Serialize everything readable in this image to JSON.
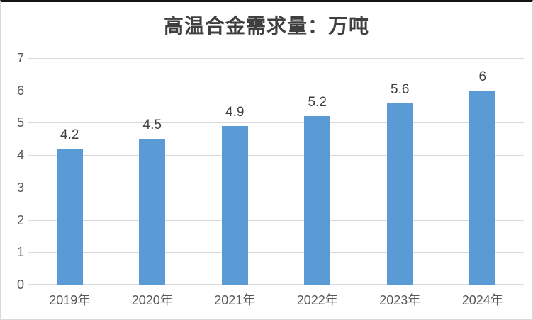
{
  "chart_data": {
    "type": "bar",
    "title": "高温合金需求量：万吨",
    "categories": [
      "2019年",
      "2020年",
      "2021年",
      "2022年",
      "2023年",
      "2024年"
    ],
    "values": [
      4.2,
      4.5,
      4.9,
      5.2,
      5.6,
      6
    ],
    "data_labels": [
      "4.2",
      "4.5",
      "4.9",
      "5.2",
      "5.6",
      "6"
    ],
    "xlabel": "",
    "ylabel": "",
    "ylim": [
      0,
      7
    ],
    "yticks": [
      0,
      1,
      2,
      3,
      4,
      5,
      6,
      7
    ],
    "grid": true,
    "legend_position": "none",
    "colors": {
      "bar": "#5B9BD5",
      "gridline": "#D9D9D9",
      "axis_line": "#D9D9D9",
      "axis_text": "#595959",
      "data_label_text": "#404040",
      "title_text": "#3F3F3F"
    }
  }
}
